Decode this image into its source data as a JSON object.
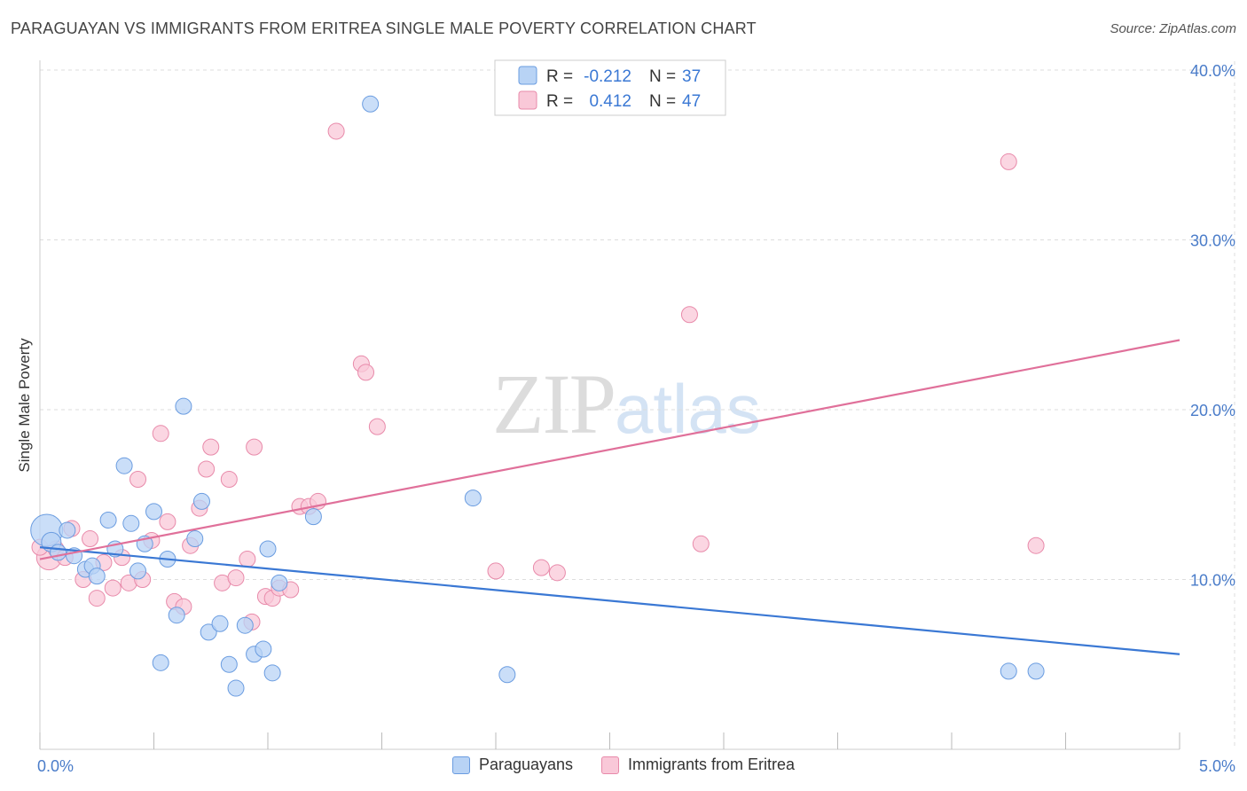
{
  "header": {
    "title": "PARAGUAYAN VS IMMIGRANTS FROM ERITREA SINGLE MALE POVERTY CORRELATION CHART",
    "source": "Source: ZipAtlas.com"
  },
  "watermark": {
    "zip": "ZIP",
    "atlas": "atlas"
  },
  "legend_top": {
    "rows": [
      {
        "r_label": "R =",
        "r_value": "-0.212",
        "n_label": "N =",
        "n_value": "37"
      },
      {
        "r_label": "R =",
        "r_value": "0.412",
        "n_label": "N =",
        "n_value": "47"
      }
    ]
  },
  "legend_bottom": {
    "items": [
      {
        "label": "Paraguayans"
      },
      {
        "label": "Immigrants from Eritrea"
      }
    ]
  },
  "colors": {
    "blue_fill": "#b8d3f5",
    "blue_stroke": "#6a9ce0",
    "blue_line": "#3a78d4",
    "pink_fill": "#f9c8d8",
    "pink_stroke": "#e88aaa",
    "pink_line": "#e0709a",
    "tick_text": "#4a7cc9",
    "grid": "#dddddd"
  },
  "chart_data": {
    "type": "scatter",
    "title": "PARAGUAYAN VS IMMIGRANTS FROM ERITREA SINGLE MALE POVERTY CORRELATION CHART",
    "xlabel": "",
    "ylabel": "Single Male Poverty",
    "xlim": [
      0,
      5
    ],
    "ylim": [
      0,
      40
    ],
    "x_tick_labels": [
      {
        "value": 0,
        "label": "0.0%"
      },
      {
        "value": 5,
        "label": "5.0%"
      }
    ],
    "y_tick_labels": [
      {
        "value": 10,
        "label": "10.0%"
      },
      {
        "value": 20,
        "label": "20.0%"
      },
      {
        "value": 30,
        "label": "30.0%"
      },
      {
        "value": 40,
        "label": "40.0%"
      }
    ],
    "x_minor_ticks": [
      0,
      0.5,
      1,
      1.5,
      2,
      2.5,
      3,
      3.5,
      4,
      4.5,
      5
    ],
    "series": [
      {
        "name": "Paraguayans",
        "r": -0.212,
        "n": 37,
        "trend": {
          "x": [
            0,
            5
          ],
          "y": [
            11.9,
            5.6
          ]
        },
        "points": [
          [
            0.03,
            12.9,
            18
          ],
          [
            0.05,
            12.2,
            11
          ],
          [
            0.08,
            11.6,
            9
          ],
          [
            0.12,
            12.9,
            9
          ],
          [
            0.15,
            11.4,
            9
          ],
          [
            0.2,
            10.6,
            9
          ],
          [
            0.23,
            10.8,
            9
          ],
          [
            0.25,
            10.2,
            9
          ],
          [
            0.3,
            13.5,
            9
          ],
          [
            0.33,
            11.8,
            9
          ],
          [
            0.37,
            16.7,
            9
          ],
          [
            0.4,
            13.3,
            9
          ],
          [
            0.43,
            10.5,
            9
          ],
          [
            0.46,
            12.1,
            9
          ],
          [
            0.5,
            14.0,
            9
          ],
          [
            0.53,
            5.1,
            9
          ],
          [
            0.56,
            11.2,
            9
          ],
          [
            0.6,
            7.9,
            9
          ],
          [
            0.63,
            20.2,
            9
          ],
          [
            0.68,
            12.4,
            9
          ],
          [
            0.71,
            14.6,
            9
          ],
          [
            0.74,
            6.9,
            9
          ],
          [
            0.79,
            7.4,
            9
          ],
          [
            0.83,
            5.0,
            9
          ],
          [
            0.86,
            3.6,
            9
          ],
          [
            0.9,
            7.3,
            9
          ],
          [
            0.94,
            5.6,
            9
          ],
          [
            0.98,
            5.9,
            9
          ],
          [
            1.0,
            11.8,
            9
          ],
          [
            1.02,
            4.5,
            9
          ],
          [
            1.05,
            9.8,
            9
          ],
          [
            1.2,
            13.7,
            9
          ],
          [
            1.45,
            38.0,
            9
          ],
          [
            1.9,
            14.8,
            9
          ],
          [
            2.05,
            4.4,
            9
          ],
          [
            4.25,
            4.6,
            9
          ],
          [
            4.37,
            4.6,
            9
          ]
        ]
      },
      {
        "name": "Immigrants from Eritrea",
        "r": 0.412,
        "n": 47,
        "trend": {
          "x": [
            0,
            5
          ],
          "y": [
            11.2,
            24.1
          ]
        },
        "points": [
          [
            0.04,
            11.3,
            14
          ],
          [
            0.07,
            11.8,
            9
          ],
          [
            0.11,
            11.3,
            9
          ],
          [
            0.14,
            13.0,
            9
          ],
          [
            0.19,
            10.0,
            9
          ],
          [
            0.22,
            12.4,
            9
          ],
          [
            0.25,
            8.9,
            9
          ],
          [
            0.28,
            11.0,
            9
          ],
          [
            0.32,
            9.5,
            9
          ],
          [
            0.36,
            11.3,
            9
          ],
          [
            0.39,
            9.8,
            9
          ],
          [
            0.43,
            15.9,
            9
          ],
          [
            0.45,
            10.0,
            9
          ],
          [
            0.49,
            12.3,
            9
          ],
          [
            0.53,
            18.6,
            9
          ],
          [
            0.56,
            13.4,
            9
          ],
          [
            0.59,
            8.7,
            9
          ],
          [
            0.63,
            8.4,
            9
          ],
          [
            0.66,
            12.0,
            9
          ],
          [
            0.7,
            14.2,
            9
          ],
          [
            0.73,
            16.5,
            9
          ],
          [
            0.75,
            17.8,
            9
          ],
          [
            0.8,
            9.8,
            9
          ],
          [
            0.83,
            15.9,
            9
          ],
          [
            0.86,
            10.1,
            9
          ],
          [
            0.91,
            11.2,
            9
          ],
          [
            0.93,
            7.5,
            9
          ],
          [
            0.99,
            9.0,
            9
          ],
          [
            1.02,
            8.9,
            9
          ],
          [
            1.05,
            9.5,
            9
          ],
          [
            1.1,
            9.4,
            9
          ],
          [
            1.14,
            14.3,
            9
          ],
          [
            1.18,
            14.3,
            9
          ],
          [
            1.22,
            14.6,
            9
          ],
          [
            1.3,
            36.4,
            9
          ],
          [
            1.41,
            22.7,
            9
          ],
          [
            1.43,
            22.2,
            9
          ],
          [
            1.48,
            19.0,
            9
          ],
          [
            0.94,
            17.8,
            9
          ],
          [
            2.0,
            10.5,
            9
          ],
          [
            2.2,
            10.7,
            9
          ],
          [
            2.27,
            10.4,
            9
          ],
          [
            2.85,
            25.6,
            9
          ],
          [
            2.9,
            12.1,
            9
          ],
          [
            4.25,
            34.6,
            9
          ],
          [
            4.37,
            12.0,
            9
          ],
          [
            0.0,
            11.9,
            9
          ]
        ]
      }
    ]
  }
}
